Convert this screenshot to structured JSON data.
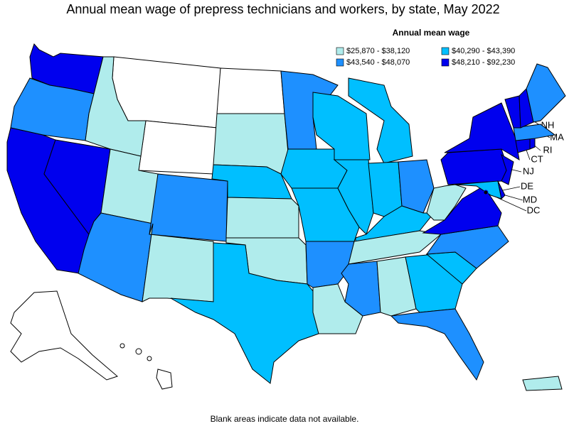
{
  "title": "Annual mean wage of prepress technicians and workers, by state, May 2022",
  "legend": {
    "title": "Annual mean wage",
    "items": [
      {
        "label": "$25,870 - $38,120",
        "color": "#b0ecec"
      },
      {
        "label": "$40,290 - $43,390",
        "color": "#00bfff"
      },
      {
        "label": "$43,540 - $48,070",
        "color": "#1e90ff"
      },
      {
        "label": "$48,210 - $92,230",
        "color": "#0000ee"
      }
    ]
  },
  "states": [
    {
      "name": "WA",
      "color": "#0000ee"
    },
    {
      "name": "OR",
      "color": "#1e90ff"
    },
    {
      "name": "CA",
      "color": "#0000ee"
    },
    {
      "name": "NV",
      "color": "#0000ee"
    },
    {
      "name": "ID",
      "color": "#b0ecec"
    },
    {
      "name": "UT",
      "color": "#b0ecec"
    },
    {
      "name": "AZ",
      "color": "#1e90ff"
    },
    {
      "name": "CO",
      "color": "#1e90ff"
    },
    {
      "name": "NM",
      "color": "#b0ecec"
    },
    {
      "name": "SD",
      "color": "#b0ecec"
    },
    {
      "name": "NE",
      "color": "#00bfff"
    },
    {
      "name": "KS",
      "color": "#b0ecec"
    },
    {
      "name": "OK",
      "color": "#b0ecec"
    },
    {
      "name": "TX",
      "color": "#00bfff"
    },
    {
      "name": "MN",
      "color": "#1e90ff"
    },
    {
      "name": "IA",
      "color": "#00bfff"
    },
    {
      "name": "MO",
      "color": "#00bfff"
    },
    {
      "name": "AR",
      "color": "#1e90ff"
    },
    {
      "name": "LA",
      "color": "#b0ecec"
    },
    {
      "name": "WI",
      "color": "#00bfff"
    },
    {
      "name": "MI",
      "color": "#00bfff"
    },
    {
      "name": "IL",
      "color": "#00bfff"
    },
    {
      "name": "IN",
      "color": "#00bfff"
    },
    {
      "name": "OH",
      "color": "#1e90ff"
    },
    {
      "name": "KY",
      "color": "#00bfff"
    },
    {
      "name": "TN",
      "color": "#b0ecec"
    },
    {
      "name": "MS",
      "color": "#1e90ff"
    },
    {
      "name": "AL",
      "color": "#b0ecec"
    },
    {
      "name": "GA",
      "color": "#00bfff"
    },
    {
      "name": "FL",
      "color": "#1e90ff"
    },
    {
      "name": "SC",
      "color": "#00bfff"
    },
    {
      "name": "NC",
      "color": "#1e90ff"
    },
    {
      "name": "VA",
      "color": "#0000ee"
    },
    {
      "name": "WV",
      "color": "#b0ecec"
    },
    {
      "name": "PA",
      "color": "#0000ee"
    },
    {
      "name": "NY",
      "color": "#0000ee"
    },
    {
      "name": "MD",
      "color": "#00bfff"
    },
    {
      "name": "DE",
      "color": "#0000ee"
    },
    {
      "name": "NJ",
      "color": "#0000ee"
    },
    {
      "name": "CT",
      "color": "#0000ee"
    },
    {
      "name": "RI",
      "color": "#0000ee"
    },
    {
      "name": "MA",
      "color": "#1e90ff"
    },
    {
      "name": "VT",
      "color": "#0000ee"
    },
    {
      "name": "NH",
      "color": "#0000ee"
    },
    {
      "name": "ME",
      "color": "#1e90ff"
    },
    {
      "name": "PR",
      "color": "#b0ecec"
    },
    {
      "name": "DC",
      "color": "#0000ee"
    }
  ],
  "footnote": "Blank areas indicate data not available."
}
